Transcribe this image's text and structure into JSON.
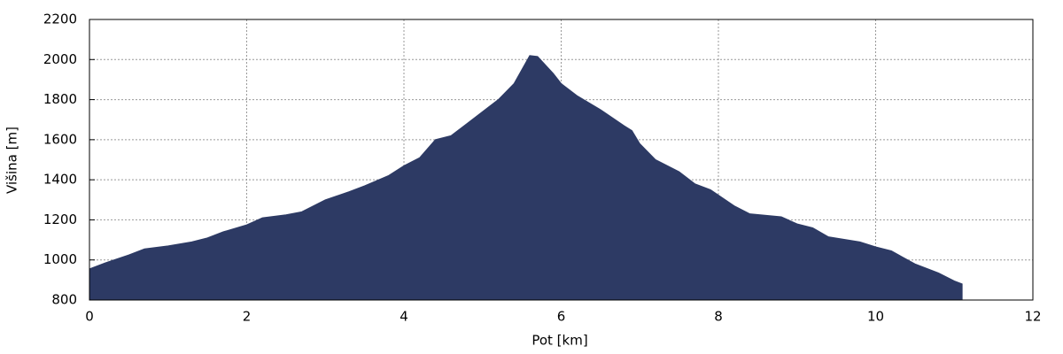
{
  "chart_data": {
    "type": "area",
    "xlabel": "Pot [km]",
    "ylabel": "Višina [m]",
    "x": [
      0,
      0.2,
      0.5,
      0.7,
      1.0,
      1.3,
      1.5,
      1.7,
      2.0,
      2.2,
      2.5,
      2.7,
      3.0,
      3.3,
      3.5,
      3.8,
      4.0,
      4.2,
      4.4,
      4.6,
      4.8,
      5.0,
      5.2,
      5.4,
      5.6,
      5.7,
      5.9,
      6.0,
      6.2,
      6.5,
      6.8,
      6.9,
      7.0,
      7.2,
      7.5,
      7.7,
      7.9,
      8.2,
      8.4,
      8.8,
      9.0,
      9.2,
      9.4,
      9.8,
      10.0,
      10.2,
      10.5,
      10.8,
      11.0,
      11.1
    ],
    "values": [
      955,
      985,
      1025,
      1055,
      1070,
      1090,
      1110,
      1140,
      1175,
      1210,
      1225,
      1240,
      1300,
      1340,
      1370,
      1420,
      1470,
      1510,
      1600,
      1620,
      1680,
      1740,
      1800,
      1880,
      2020,
      2015,
      1930,
      1880,
      1820,
      1750,
      1670,
      1645,
      1580,
      1500,
      1440,
      1380,
      1350,
      1270,
      1230,
      1215,
      1180,
      1160,
      1115,
      1090,
      1065,
      1045,
      980,
      935,
      895,
      880
    ],
    "color": "#2d3a64",
    "xlim": [
      0,
      12
    ],
    "xticks": [
      0,
      2,
      4,
      6,
      8,
      10,
      12
    ],
    "ylim": [
      800,
      2200
    ],
    "yticks": [
      800,
      1000,
      1200,
      1400,
      1600,
      1800,
      2000,
      2200
    ],
    "grid": true
  }
}
